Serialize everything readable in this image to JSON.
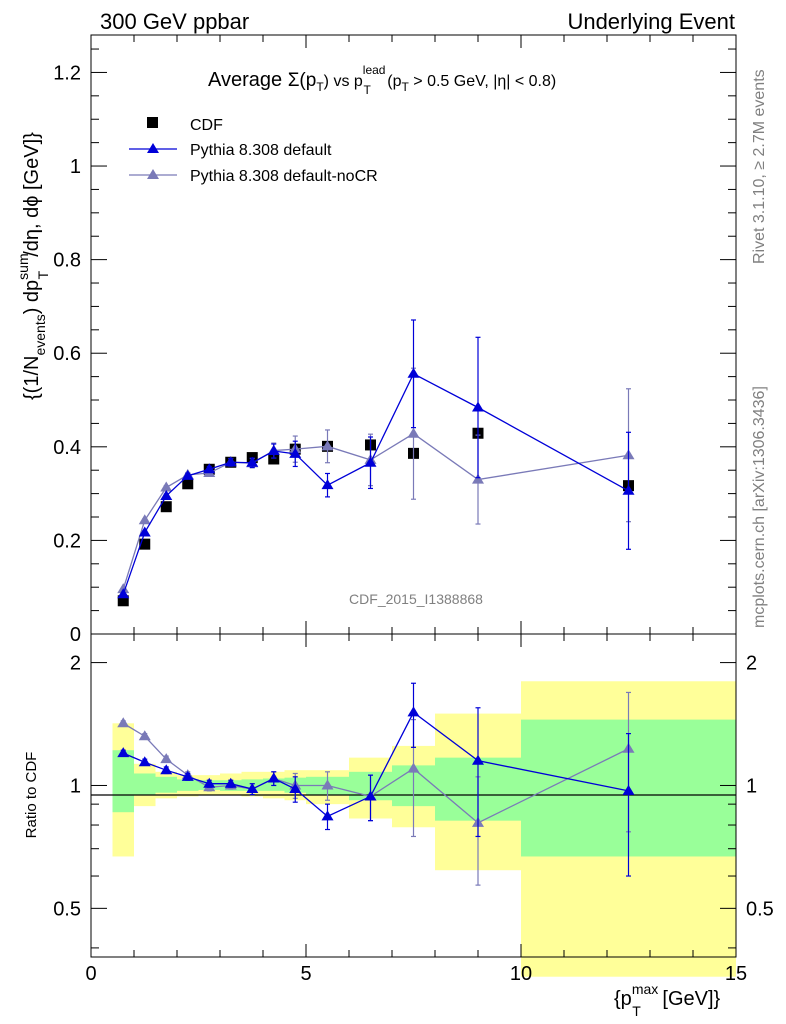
{
  "header": {
    "left": "300 GeV ppbar",
    "right": "Underlying Event"
  },
  "side_text": {
    "rivet": "Rivet 3.1.10, ≥ 2.7M events",
    "mcplots": "mcplots.cern.ch [arXiv:1306.3436]"
  },
  "watermark": "CDF_2015_I1388868",
  "title": {
    "prefix": "Average ",
    "sigma": "Σ(p",
    "sigma_sub": "T",
    "mid": ") vs p",
    "lead_sup": "lead",
    "lead_sub": "T",
    "cut1": " (p",
    "cut1_sub": "T",
    "cut1_rest": " > 0.5 GeV, |η| < 0.8)"
  },
  "ylabel_main": {
    "a": "{(1/N",
    "a_sub": "events",
    "b": ") dp",
    "b_sup": "sum",
    "b_sub": "T",
    "c": "/dη, dϕ [GeV]}"
  },
  "ylabel_ratio": "Ratio to CDF",
  "xlabel": {
    "a": "{p",
    "a_sup": "max",
    "a_sub": "T",
    "b": " [GeV]}"
  },
  "chart_data": {
    "type": "scatter",
    "x_ticks": [
      "0",
      "5",
      "10",
      "15"
    ],
    "xlim": [
      0,
      15
    ],
    "main": {
      "ylim": [
        0,
        1.28
      ],
      "y_ticks": [
        "0",
        "0.2",
        "0.4",
        "0.6",
        "0.8",
        "1",
        "1.2"
      ],
      "legend_position": "top-left",
      "series": [
        {
          "name": "CDF",
          "marker": "square",
          "color": "#000000",
          "x": [
            0.75,
            1.25,
            1.75,
            2.25,
            2.75,
            3.25,
            3.75,
            4.25,
            4.75,
            5.5,
            6.5,
            7.5,
            9.0,
            12.5
          ],
          "y": [
            0.071,
            0.192,
            0.272,
            0.321,
            0.352,
            0.367,
            0.377,
            0.374,
            0.395,
            0.401,
            0.404,
            0.386,
            0.429,
            0.317
          ]
        },
        {
          "name": "Pythia 8.308 default",
          "marker": "triangle",
          "color": "#0000d8",
          "x": [
            0.75,
            1.25,
            1.75,
            2.25,
            2.75,
            3.25,
            3.75,
            4.25,
            4.75,
            5.5,
            6.5,
            7.5,
            9.0,
            12.5
          ],
          "y": [
            0.085,
            0.217,
            0.295,
            0.338,
            0.352,
            0.367,
            0.366,
            0.391,
            0.385,
            0.318,
            0.366,
            0.556,
            0.484,
            0.306
          ],
          "err": [
            0.002,
            0.003,
            0.004,
            0.005,
            0.006,
            0.008,
            0.01,
            0.015,
            0.027,
            0.025,
            0.055,
            0.115,
            0.15,
            0.125
          ]
        },
        {
          "name": "Pythia 8.308 default-noCR",
          "marker": "triangle",
          "color": "#7a7ab8",
          "x": [
            0.75,
            1.25,
            1.75,
            2.25,
            2.75,
            3.25,
            3.75,
            4.25,
            4.75,
            5.5,
            6.5,
            7.5,
            9.0,
            12.5
          ],
          "y": [
            0.096,
            0.243,
            0.313,
            0.34,
            0.344,
            0.367,
            0.365,
            0.392,
            0.395,
            0.401,
            0.372,
            0.428,
            0.33,
            0.382
          ],
          "err": [
            0.002,
            0.003,
            0.004,
            0.005,
            0.006,
            0.008,
            0.01,
            0.016,
            0.028,
            0.035,
            0.055,
            0.14,
            0.095,
            0.142
          ]
        }
      ]
    },
    "ratio": {
      "ylim": [
        0.38,
        2.35
      ],
      "log_scale": true,
      "y_ticks": [
        "0.5",
        "1",
        "2"
      ],
      "reference": 1,
      "bands": [
        {
          "xlo": 0.5,
          "xhi": 1.0,
          "green": [
            0.86,
            1.22
          ],
          "yellow": [
            0.67,
            1.42
          ]
        },
        {
          "xlo": 1.0,
          "xhi": 1.5,
          "green": [
            0.95,
            1.07
          ],
          "yellow": [
            0.89,
            1.13
          ]
        },
        {
          "xlo": 1.5,
          "xhi": 2.0,
          "green": [
            0.96,
            1.05
          ],
          "yellow": [
            0.93,
            1.08
          ]
        },
        {
          "xlo": 2.0,
          "xhi": 2.5,
          "green": [
            0.97,
            1.035
          ],
          "yellow": [
            0.94,
            1.06
          ]
        },
        {
          "xlo": 2.5,
          "xhi": 3.0,
          "green": [
            0.975,
            1.03
          ],
          "yellow": [
            0.95,
            1.06
          ]
        },
        {
          "xlo": 3.0,
          "xhi": 3.5,
          "green": [
            0.97,
            1.03
          ],
          "yellow": [
            0.95,
            1.07
          ]
        },
        {
          "xlo": 3.5,
          "xhi": 4.0,
          "green": [
            0.97,
            1.035
          ],
          "yellow": [
            0.94,
            1.08
          ]
        },
        {
          "xlo": 4.0,
          "xhi": 4.5,
          "green": [
            0.97,
            1.04
          ],
          "yellow": [
            0.93,
            1.08
          ]
        },
        {
          "xlo": 4.5,
          "xhi": 5.0,
          "green": [
            0.96,
            1.045
          ],
          "yellow": [
            0.92,
            1.09
          ]
        },
        {
          "xlo": 5.0,
          "xhi": 6.0,
          "green": [
            0.95,
            1.05
          ],
          "yellow": [
            0.9,
            1.09
          ]
        },
        {
          "xlo": 6.0,
          "xhi": 7.0,
          "green": [
            0.92,
            1.08
          ],
          "yellow": [
            0.83,
            1.17
          ]
        },
        {
          "xlo": 7.0,
          "xhi": 8.0,
          "green": [
            0.89,
            1.12
          ],
          "yellow": [
            0.79,
            1.25
          ]
        },
        {
          "xlo": 8.0,
          "xhi": 10.0,
          "green": [
            0.82,
            1.17
          ],
          "yellow": [
            0.62,
            1.5
          ]
        },
        {
          "xlo": 10.0,
          "xhi": 15.0,
          "green": [
            0.67,
            1.45
          ],
          "yellow": [
            0.34,
            1.8
          ]
        }
      ],
      "series": [
        {
          "name": "Pythia 8.308 default",
          "color": "#0000d8",
          "x": [
            0.75,
            1.25,
            1.75,
            2.25,
            2.75,
            3.25,
            3.75,
            4.25,
            4.75,
            5.5,
            6.5,
            7.5,
            9.0,
            12.5
          ],
          "y": [
            1.2,
            1.14,
            1.09,
            1.05,
            1.01,
            1.01,
            0.98,
            1.04,
            0.98,
            0.84,
            0.94,
            1.51,
            1.15,
            0.97
          ],
          "err": [
            0.02,
            0.02,
            0.02,
            0.02,
            0.02,
            0.02,
            0.03,
            0.04,
            0.07,
            0.06,
            0.12,
            0.27,
            0.4,
            0.37
          ]
        },
        {
          "name": "Pythia 8.308 default-noCR",
          "color": "#7a7ab8",
          "x": [
            0.75,
            1.25,
            1.75,
            2.25,
            2.75,
            3.25,
            3.75,
            4.25,
            4.75,
            5.5,
            6.5,
            7.5,
            9.0,
            12.5
          ],
          "y": [
            1.42,
            1.32,
            1.16,
            1.06,
            0.99,
            1.0,
            0.98,
            1.04,
            1.0,
            1.0,
            0.94,
            1.1,
            0.81,
            1.23
          ],
          "err": [
            0.02,
            0.02,
            0.02,
            0.02,
            0.02,
            0.02,
            0.03,
            0.04,
            0.07,
            0.08,
            0.12,
            0.35,
            0.24,
            0.46
          ]
        }
      ]
    }
  }
}
